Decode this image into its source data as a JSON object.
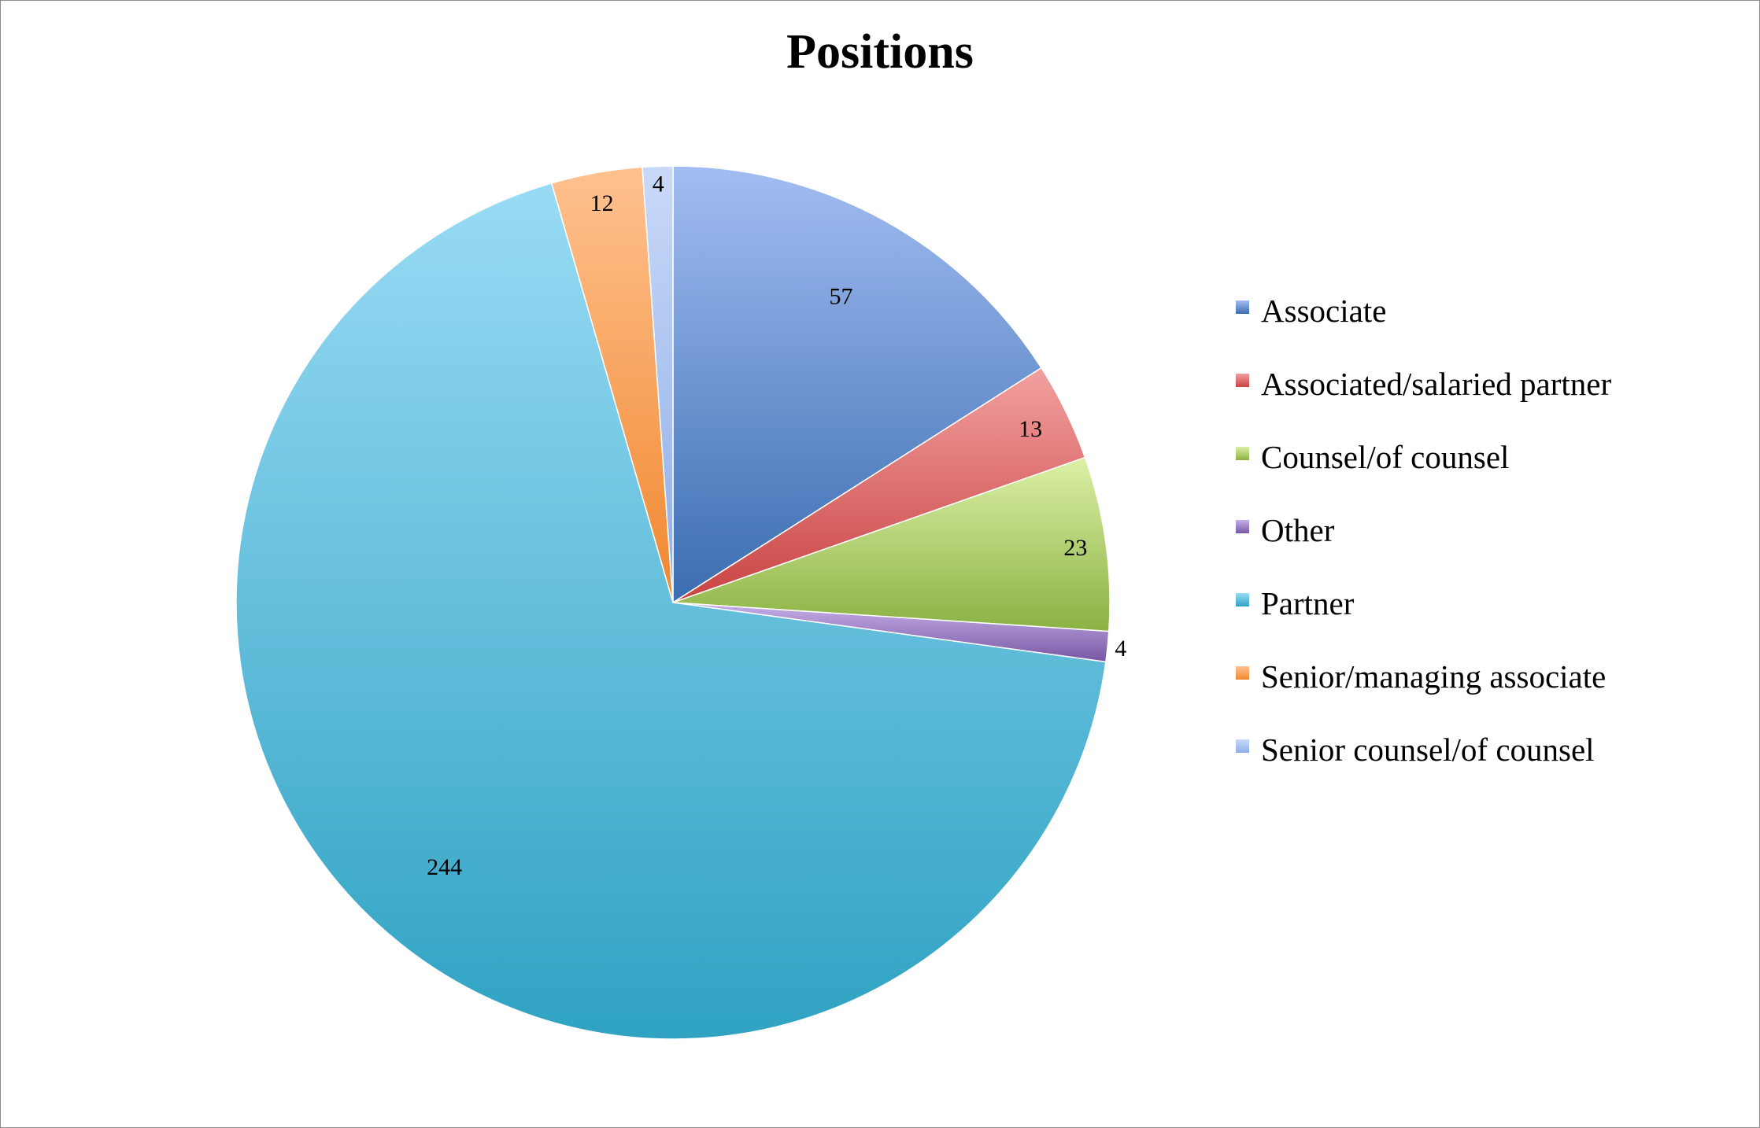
{
  "chart_data": {
    "type": "pie",
    "title": "Positions",
    "start_angle_deg": 0,
    "direction": "clockwise",
    "legend_position": "right",
    "slices": [
      {
        "name": "Associate",
        "value": 57,
        "label": "57",
        "color": "#4a7ebb",
        "light": "#a2bdf2",
        "dark": "#3a6db0"
      },
      {
        "name": "Associated/salaried partner",
        "value": 13,
        "label": "13",
        "color": "#c0504d",
        "light": "#f2a0a0",
        "dark": "#c84342"
      },
      {
        "name": "Counsel/of counsel",
        "value": 23,
        "label": "23",
        "color": "#9bbb59",
        "light": "#dcf0a6",
        "dark": "#8bb142"
      },
      {
        "name": "Other",
        "value": 4,
        "label": "4",
        "color": "#8064a2",
        "light": "#c6b0e8",
        "dark": "#7857a4"
      },
      {
        "name": "Partner",
        "value": 244,
        "label": "244",
        "color": "#4bacc6",
        "light": "#9bdcf6",
        "dark": "#2fa2c2"
      },
      {
        "name": "Senior/managing associate",
        "value": 12,
        "label": "12",
        "color": "#f79646",
        "light": "#ffc18f",
        "dark": "#f0882f"
      },
      {
        "name": "Senior counsel/of counsel",
        "value": 4,
        "label": "4",
        "color": "#a5c0f0",
        "light": "#c9d9f8",
        "dark": "#8eaee8"
      }
    ]
  }
}
